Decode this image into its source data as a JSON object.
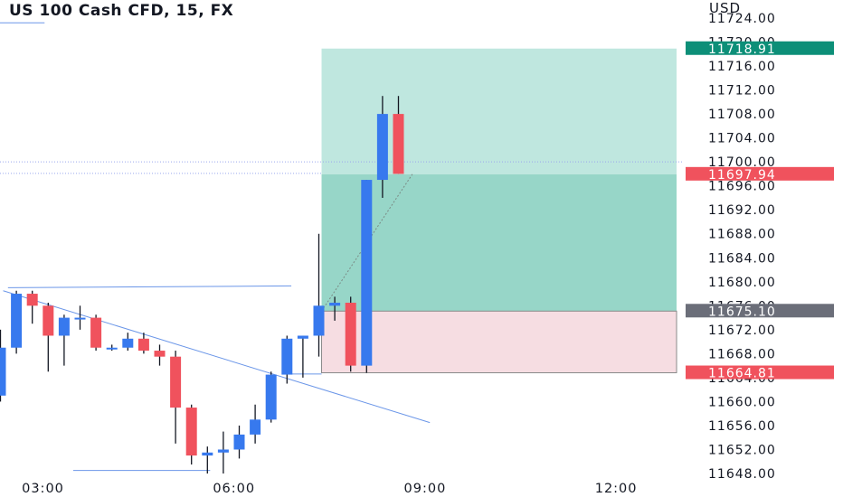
{
  "header": {
    "title": "US 100 Cash CFD, 15, FX",
    "currency": "USD"
  },
  "colors": {
    "bull": "#3779ee",
    "bear": "#f0525d",
    "profit_zone": "#bfe7df",
    "profit_zone_strong": "#97d6c8",
    "loss_zone": "#f6dde2",
    "target_badge": "#0d8f78",
    "current_badge": "#f0525d",
    "entry_badge": "#6b6e79",
    "stop_badge": "#f0525d",
    "trendline": "#6b96e8",
    "axis_text": "#131722"
  },
  "chart_data": {
    "type": "candlestick",
    "symbol": "US 100 Cash CFD",
    "interval": "15",
    "exchange": "FX",
    "unit": "USD",
    "ylim": [
      11646.5,
      11727
    ],
    "y_ticks": [
      "11724.00",
      "11720.00",
      "11716.00",
      "11712.00",
      "11708.00",
      "11704.00",
      "11700.00",
      "11696.00",
      "11692.00",
      "11688.00",
      "11684.00",
      "11680.00",
      "11676.00",
      "11672.00",
      "11668.00",
      "11664.00",
      "11660.00",
      "11656.00",
      "11652.00",
      "11648.00"
    ],
    "x_ticks": [
      {
        "label": "03:00",
        "index": 2.7
      },
      {
        "label": "06:00",
        "index": 14.7
      },
      {
        "label": "09:00",
        "index": 26.7
      },
      {
        "label": "12:00",
        "index": 38.7
      }
    ],
    "candles": [
      {
        "o": 11661.0,
        "h": 11672.0,
        "l": 11660.0,
        "c": 11669.0
      },
      {
        "o": 11669.0,
        "h": 11678.5,
        "l": 11668.0,
        "c": 11678.0
      },
      {
        "o": 11678.0,
        "h": 11678.5,
        "l": 11673.0,
        "c": 11676.0
      },
      {
        "o": 11676.0,
        "h": 11676.5,
        "l": 11665.0,
        "c": 11671.0
      },
      {
        "o": 11671.0,
        "h": 11674.5,
        "l": 11666.0,
        "c": 11674.0
      },
      {
        "o": 11674.0,
        "h": 11676.0,
        "l": 11672.0,
        "c": 11674.0
      },
      {
        "o": 11674.0,
        "h": 11674.5,
        "l": 11668.5,
        "c": 11669.0
      },
      {
        "o": 11669.0,
        "h": 11669.5,
        "l": 11668.5,
        "c": 11669.0
      },
      {
        "o": 11669.0,
        "h": 11671.5,
        "l": 11668.5,
        "c": 11670.5
      },
      {
        "o": 11670.5,
        "h": 11671.5,
        "l": 11668.0,
        "c": 11668.5
      },
      {
        "o": 11668.5,
        "h": 11669.5,
        "l": 11666.0,
        "c": 11667.5
      },
      {
        "o": 11667.5,
        "h": 11668.5,
        "l": 11653.0,
        "c": 11659.0
      },
      {
        "o": 11659.0,
        "h": 11659.5,
        "l": 11649.5,
        "c": 11651.0
      },
      {
        "o": 11651.0,
        "h": 11652.5,
        "l": 11648.0,
        "c": 11651.5
      },
      {
        "o": 11651.5,
        "h": 11655.0,
        "l": 11648.0,
        "c": 11652.0
      },
      {
        "o": 11652.0,
        "h": 11656.0,
        "l": 11650.5,
        "c": 11654.5
      },
      {
        "o": 11654.5,
        "h": 11659.5,
        "l": 11653.0,
        "c": 11657.0
      },
      {
        "o": 11657.0,
        "h": 11665.0,
        "l": 11656.5,
        "c": 11664.5
      },
      {
        "o": 11664.5,
        "h": 11671.0,
        "l": 11663.0,
        "c": 11670.5
      },
      {
        "o": 11670.5,
        "h": 11671.0,
        "l": 11664.0,
        "c": 11671.0
      },
      {
        "o": 11671.0,
        "h": 11688.0,
        "l": 11667.5,
        "c": 11676.0
      },
      {
        "o": 11676.0,
        "h": 11677.5,
        "l": 11673.5,
        "c": 11676.5
      },
      {
        "o": 11676.5,
        "h": 11677.5,
        "l": 11665.0,
        "c": 11666.0
      },
      {
        "o": 11666.0,
        "h": 11697.0,
        "l": 11664.8,
        "c": 11697.0
      },
      {
        "o": 11697.0,
        "h": 11711.0,
        "l": 11694.0,
        "c": 11708.0
      },
      {
        "o": 11708.0,
        "h": 11711.0,
        "l": 11698.0,
        "c": 11698.0
      }
    ],
    "position_tool": {
      "entry": 11675.1,
      "target": 11718.91,
      "stop": 11664.81,
      "current": 11697.94,
      "start_index": 20.2,
      "end_index": 42.5
    },
    "price_labels": [
      {
        "value": 11718.91,
        "text": "11718.91",
        "kind": "target"
      },
      {
        "value": 11697.94,
        "text": "11697.94",
        "kind": "current"
      },
      {
        "value": 11675.1,
        "text": "11675.10",
        "kind": "entry"
      },
      {
        "value": 11664.81,
        "text": "11664.81",
        "kind": "stop"
      }
    ],
    "trendlines": [
      {
        "from": [
          -2,
          11723.2
        ],
        "to": [
          2.8,
          11723.2
        ]
      },
      {
        "from": [
          0.2,
          11678.5
        ],
        "to": [
          27.0,
          11656.5
        ]
      },
      {
        "from": [
          0.5,
          11679.0
        ],
        "to": [
          18.3,
          11679.3
        ]
      },
      {
        "from": [
          4.6,
          11648.5
        ],
        "to": [
          13.2,
          11648.5
        ]
      },
      {
        "from": [
          18.3,
          11664.6
        ],
        "to": [
          20.2,
          11664.6
        ]
      }
    ],
    "dotted_line": {
      "y": 11700.0
    }
  }
}
